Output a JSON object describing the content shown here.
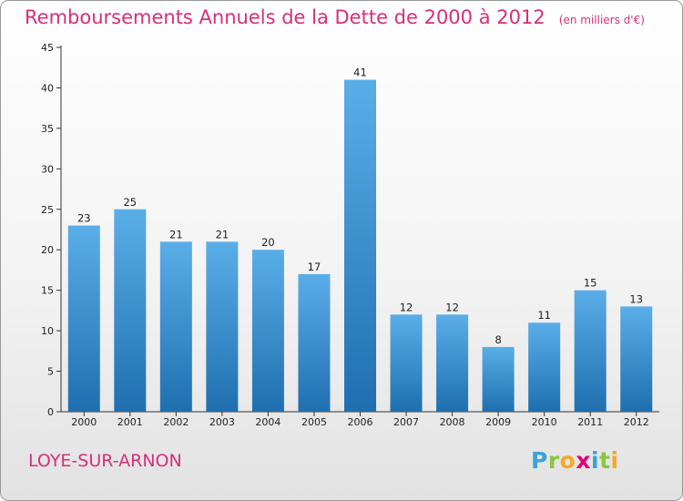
{
  "header": {
    "title": "Remboursements Annuels de la Dette de 2000 à 2012",
    "unit": "(en milliers d'€)"
  },
  "footer": {
    "commune": "LOYE-SUR-ARNON",
    "logo": {
      "letters": [
        "P",
        "r",
        "o",
        "x",
        "i",
        "t",
        "i"
      ],
      "colors": [
        "#3aa3db",
        "#8cc63f",
        "#f7a823",
        "#e3007b",
        "#3aa3db",
        "#8cc63f",
        "#f7a823"
      ]
    }
  },
  "colors": {
    "accent": "#d62f7a",
    "bar_top": "#5aaee8",
    "bar_bottom": "#1f6fb0"
  },
  "chart_data": {
    "type": "bar",
    "title": "Remboursements Annuels de la Dette de 2000 à 2012",
    "subtitle": "(en milliers d'€)",
    "xlabel": "",
    "ylabel": "",
    "categories": [
      "2000",
      "2001",
      "2002",
      "2003",
      "2004",
      "2005",
      "2006",
      "2007",
      "2008",
      "2009",
      "2010",
      "2011",
      "2012"
    ],
    "values": [
      23,
      25,
      21,
      21,
      20,
      17,
      41,
      12,
      12,
      8,
      11,
      15,
      13
    ],
    "ylim": [
      0,
      45
    ],
    "yticks": [
      0,
      5,
      10,
      15,
      20,
      25,
      30,
      35,
      40,
      45
    ],
    "grid": false,
    "data_labels": true
  }
}
